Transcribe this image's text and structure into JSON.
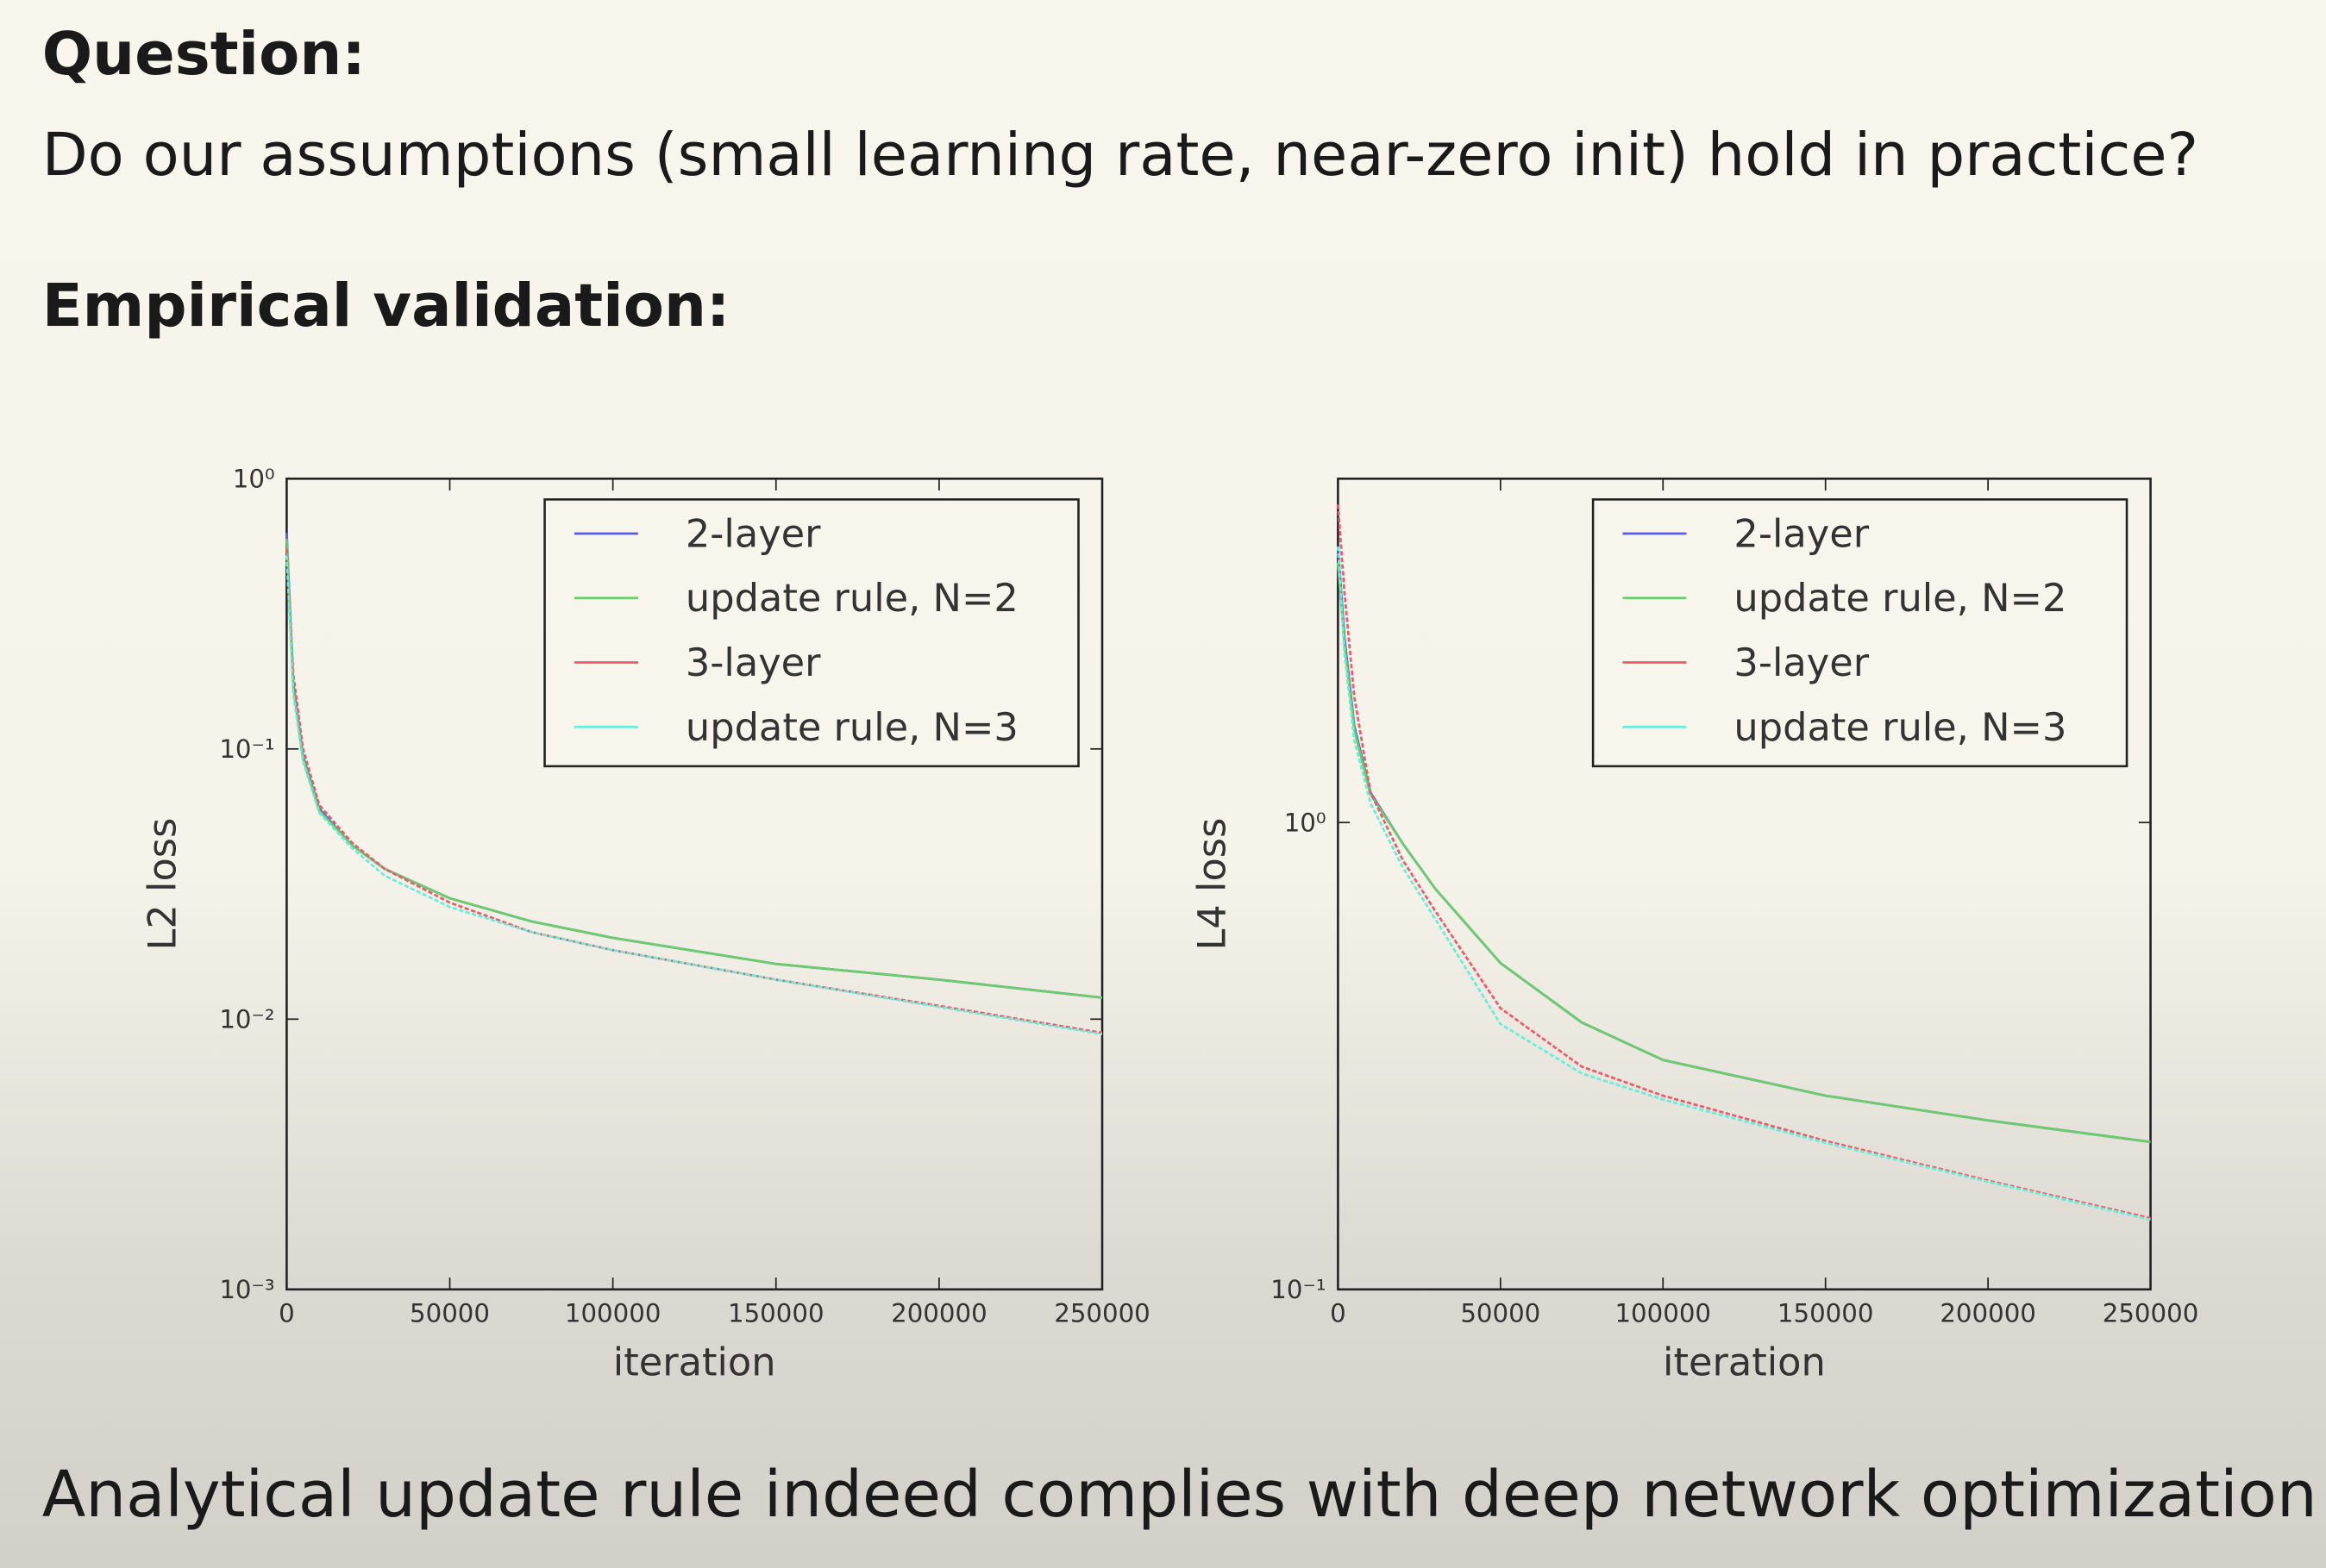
{
  "slide": {
    "question_heading": "Question:",
    "question": "Do our assumptions (small learning rate, near-zero init) hold in practice?",
    "validation_heading": "Empirical validation:",
    "conclusion": "Analytical update rule indeed complies with deep network optimization"
  },
  "chart_data": [
    {
      "type": "line",
      "y_label": "L2 loss",
      "x_label": "iteration",
      "log_y": true,
      "legend": "upper right",
      "x": [
        0,
        2000,
        5000,
        10000,
        20000,
        30000,
        50000,
        75000,
        100000,
        150000,
        200000,
        250000
      ],
      "xlim": [
        0,
        250000
      ],
      "xticks": [
        0,
        50000,
        100000,
        150000,
        200000,
        250000
      ],
      "ylim": [
        0.001,
        1
      ],
      "yticks": [
        {
          "value": 0.001,
          "label": "10⁻³"
        },
        {
          "value": 0.01,
          "label": "10⁻²"
        },
        {
          "value": 0.1,
          "label": "10⁻¹"
        },
        {
          "value": 1,
          "label": "10⁰"
        }
      ],
      "series": [
        {
          "name": "2-layer",
          "color": "#5a5ae0",
          "values": [
            0.63,
            0.177,
            0.094,
            0.06,
            0.044,
            0.036,
            0.028,
            0.023,
            0.02,
            0.016,
            0.014,
            0.012
          ]
        },
        {
          "name": "update rule, N=2",
          "color": "#6acc6a",
          "values": [
            0.6,
            0.17,
            0.092,
            0.059,
            0.044,
            0.036,
            0.028,
            0.023,
            0.02,
            0.016,
            0.014,
            0.012
          ]
        },
        {
          "name": "3-layer",
          "color": "#ee5a6a",
          "values": [
            0.55,
            0.19,
            0.1,
            0.062,
            0.045,
            0.036,
            0.027,
            0.021,
            0.018,
            0.014,
            0.0112,
            0.0089
          ]
        },
        {
          "name": "update rule, N=3",
          "color": "#66eedc",
          "values": [
            0.52,
            0.16,
            0.09,
            0.058,
            0.043,
            0.034,
            0.026,
            0.021,
            0.018,
            0.014,
            0.0111,
            0.0088
          ]
        }
      ]
    },
    {
      "type": "line",
      "y_label": "L4 loss",
      "x_label": "iteration",
      "log_y": true,
      "legend": "upper right",
      "x": [
        0,
        2000,
        5000,
        10000,
        20000,
        30000,
        50000,
        75000,
        100000,
        150000,
        200000,
        250000
      ],
      "xlim": [
        0,
        250000
      ],
      "xticks": [
        0,
        50000,
        100000,
        150000,
        200000,
        250000
      ],
      "ylim": [
        0.1,
        5.45
      ],
      "yticks": [
        {
          "value": 0.1,
          "label": "10⁻¹"
        },
        {
          "value": 1,
          "label": "10⁰"
        }
      ],
      "series": [
        {
          "name": "2-layer",
          "color": "#5a5ae0",
          "values": [
            3.87,
            2.49,
            1.61,
            1.16,
            0.9,
            0.72,
            0.5,
            0.373,
            0.31,
            0.26,
            0.23,
            0.207
          ]
        },
        {
          "name": "update rule, N=2",
          "color": "#6acc6a",
          "values": [
            3.6,
            2.4,
            1.58,
            1.15,
            0.9,
            0.72,
            0.5,
            0.373,
            0.31,
            0.26,
            0.23,
            0.207
          ]
        },
        {
          "name": "3-layer",
          "color": "#ee5a6a",
          "values": [
            4.8,
            3.1,
            1.86,
            1.16,
            0.83,
            0.645,
            0.4,
            0.3,
            0.26,
            0.208,
            0.171,
            0.142
          ]
        },
        {
          "name": "update rule, N=3",
          "color": "#66eedc",
          "values": [
            3.9,
            2.3,
            1.5,
            1.1,
            0.8,
            0.62,
            0.37,
            0.29,
            0.255,
            0.206,
            0.17,
            0.141
          ]
        }
      ]
    }
  ]
}
